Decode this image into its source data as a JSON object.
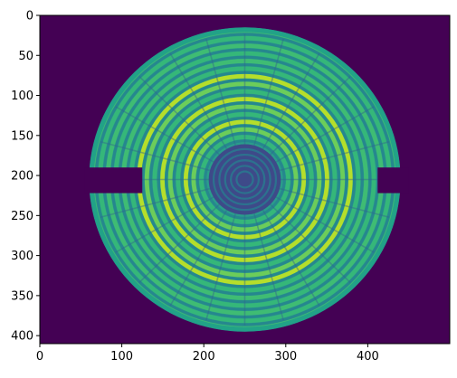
{
  "chart_data": {
    "type": "heatmap",
    "title": "",
    "xlabel": "",
    "ylabel": "",
    "colormap": "viridis",
    "image_size": [
      500,
      410
    ],
    "xlim": [
      0,
      500
    ],
    "ylim": [
      410,
      0
    ],
    "xticks": [
      0,
      100,
      200,
      300,
      400
    ],
    "yticks": [
      0,
      50,
      100,
      150,
      200,
      250,
      300,
      350,
      400
    ],
    "xtick_labels": [
      "0",
      "100",
      "200",
      "300",
      "400"
    ],
    "ytick_labels": [
      "0",
      "50",
      "100",
      "150",
      "200",
      "250",
      "300",
      "350",
      "400"
    ],
    "background_color": "#440154",
    "disc": {
      "center": [
        250,
        205
      ],
      "outer_radius": 190,
      "inner_dark_radius": 44,
      "ring_spacing": 9.5,
      "dominant_colors": [
        "#35b779",
        "#6ccd5a",
        "#b5de2b",
        "#26828e",
        "#31688e",
        "#3e4a89"
      ]
    }
  }
}
